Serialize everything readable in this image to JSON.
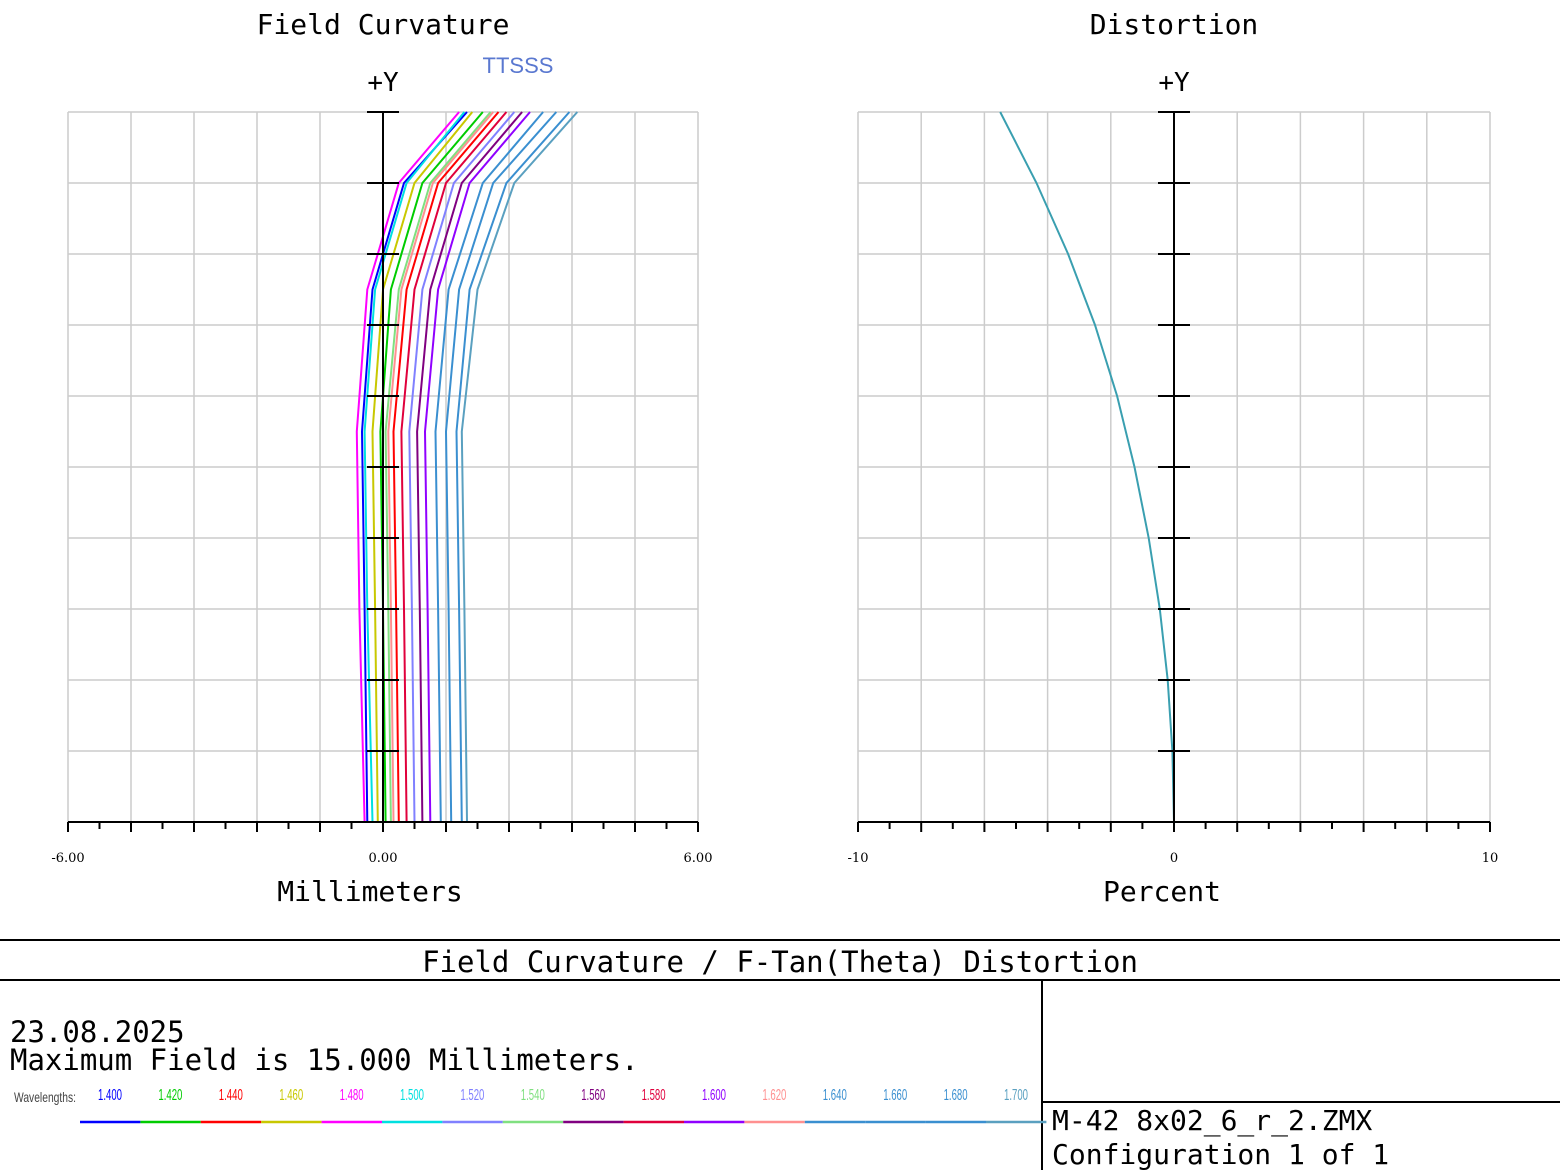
{
  "chart_data": [
    {
      "type": "line",
      "title": "Field Curvature",
      "xlabel": "Millimeters",
      "ylabel": "+Y",
      "xlim": [
        -6,
        6
      ],
      "ylim": [
        0,
        1
      ],
      "x_tick_labels": [
        "-6.00",
        "0.00",
        "6.00"
      ],
      "legend_marks": "TTSSS",
      "grid": true,
      "series": [
        {
          "color": "#0000ff",
          "values": [
            {
              "x": -0.3,
              "y": 0
            },
            {
              "x": -0.35,
              "y": 0.3
            },
            {
              "x": -0.4,
              "y": 0.55
            },
            {
              "x": -0.2,
              "y": 0.75
            },
            {
              "x": 0.4,
              "y": 0.9
            },
            {
              "x": 1.6,
              "y": 1
            }
          ]
        },
        {
          "color": "#00cc00",
          "values": [
            {
              "x": 0.05,
              "y": 0
            },
            {
              "x": 0.0,
              "y": 0.3
            },
            {
              "x": -0.05,
              "y": 0.55
            },
            {
              "x": 0.15,
              "y": 0.75
            },
            {
              "x": 0.75,
              "y": 0.9
            },
            {
              "x": 1.9,
              "y": 1
            }
          ]
        },
        {
          "color": "#ff0000",
          "values": [
            {
              "x": 0.3,
              "y": 0
            },
            {
              "x": 0.25,
              "y": 0.3
            },
            {
              "x": 0.2,
              "y": 0.55
            },
            {
              "x": 0.45,
              "y": 0.75
            },
            {
              "x": 1.05,
              "y": 0.9
            },
            {
              "x": 2.2,
              "y": 1
            }
          ]
        },
        {
          "color": "#c8c800",
          "values": [
            {
              "x": -0.1,
              "y": 0
            },
            {
              "x": -0.15,
              "y": 0.3
            },
            {
              "x": -0.2,
              "y": 0.55
            },
            {
              "x": 0.0,
              "y": 0.75
            },
            {
              "x": 0.6,
              "y": 0.9
            },
            {
              "x": 1.7,
              "y": 1
            }
          ]
        },
        {
          "color": "#ff00ff",
          "values": [
            {
              "x": -0.35,
              "y": 0
            },
            {
              "x": -0.45,
              "y": 0.3
            },
            {
              "x": -0.5,
              "y": 0.55
            },
            {
              "x": -0.3,
              "y": 0.75
            },
            {
              "x": 0.3,
              "y": 0.9
            },
            {
              "x": 1.45,
              "y": 1
            }
          ]
        },
        {
          "color": "#00e0e0",
          "values": [
            {
              "x": -0.2,
              "y": 0
            },
            {
              "x": -0.3,
              "y": 0.3
            },
            {
              "x": -0.35,
              "y": 0.55
            },
            {
              "x": -0.15,
              "y": 0.75
            },
            {
              "x": 0.45,
              "y": 0.9
            },
            {
              "x": 1.55,
              "y": 1
            }
          ]
        },
        {
          "color": "#8080ff",
          "values": [
            {
              "x": 0.6,
              "y": 0
            },
            {
              "x": 0.55,
              "y": 0.3
            },
            {
              "x": 0.5,
              "y": 0.55
            },
            {
              "x": 0.75,
              "y": 0.75
            },
            {
              "x": 1.35,
              "y": 0.9
            },
            {
              "x": 2.5,
              "y": 1
            }
          ]
        },
        {
          "color": "#80e080",
          "values": [
            {
              "x": 0.15,
              "y": 0
            },
            {
              "x": 0.1,
              "y": 0.3
            },
            {
              "x": 0.05,
              "y": 0.55
            },
            {
              "x": 0.3,
              "y": 0.75
            },
            {
              "x": 0.9,
              "y": 0.9
            },
            {
              "x": 2.05,
              "y": 1
            }
          ]
        },
        {
          "color": "#800080",
          "values": [
            {
              "x": 0.75,
              "y": 0
            },
            {
              "x": 0.7,
              "y": 0.3
            },
            {
              "x": 0.65,
              "y": 0.55
            },
            {
              "x": 0.9,
              "y": 0.75
            },
            {
              "x": 1.5,
              "y": 0.9
            },
            {
              "x": 2.65,
              "y": 1
            }
          ]
        },
        {
          "color": "#e0003c",
          "values": [
            {
              "x": 0.45,
              "y": 0
            },
            {
              "x": 0.4,
              "y": 0.3
            },
            {
              "x": 0.35,
              "y": 0.55
            },
            {
              "x": 0.6,
              "y": 0.75
            },
            {
              "x": 1.2,
              "y": 0.9
            },
            {
              "x": 2.35,
              "y": 1
            }
          ]
        },
        {
          "color": "#9000ff",
          "values": [
            {
              "x": 0.9,
              "y": 0
            },
            {
              "x": 0.85,
              "y": 0.3
            },
            {
              "x": 0.8,
              "y": 0.55
            },
            {
              "x": 1.05,
              "y": 0.75
            },
            {
              "x": 1.65,
              "y": 0.9
            },
            {
              "x": 2.8,
              "y": 1
            }
          ]
        },
        {
          "color": "#ff9090",
          "values": [
            {
              "x": 0.2,
              "y": 0
            },
            {
              "x": 0.15,
              "y": 0.3
            },
            {
              "x": 0.1,
              "y": 0.55
            },
            {
              "x": 0.35,
              "y": 0.75
            },
            {
              "x": 0.95,
              "y": 0.9
            },
            {
              "x": 2.1,
              "y": 1
            }
          ]
        },
        {
          "color": "#3a8fd0",
          "values": [
            {
              "x": 1.1,
              "y": 0
            },
            {
              "x": 1.05,
              "y": 0.3
            },
            {
              "x": 1.0,
              "y": 0.55
            },
            {
              "x": 1.25,
              "y": 0.75
            },
            {
              "x": 1.9,
              "y": 0.9
            },
            {
              "x": 3.05,
              "y": 1
            }
          ]
        },
        {
          "color": "#3a8fd0",
          "values": [
            {
              "x": 1.3,
              "y": 0
            },
            {
              "x": 1.25,
              "y": 0.3
            },
            {
              "x": 1.2,
              "y": 0.55
            },
            {
              "x": 1.45,
              "y": 0.75
            },
            {
              "x": 2.1,
              "y": 0.9
            },
            {
              "x": 3.3,
              "y": 1
            }
          ]
        },
        {
          "color": "#3a8fd0",
          "values": [
            {
              "x": 1.5,
              "y": 0
            },
            {
              "x": 1.45,
              "y": 0.3
            },
            {
              "x": 1.4,
              "y": 0.55
            },
            {
              "x": 1.65,
              "y": 0.75
            },
            {
              "x": 2.35,
              "y": 0.9
            },
            {
              "x": 3.55,
              "y": 1
            }
          ]
        },
        {
          "color": "#5aa0c0",
          "values": [
            {
              "x": 1.6,
              "y": 0
            },
            {
              "x": 1.55,
              "y": 0.3
            },
            {
              "x": 1.5,
              "y": 0.55
            },
            {
              "x": 1.8,
              "y": 0.75
            },
            {
              "x": 2.5,
              "y": 0.9
            },
            {
              "x": 3.7,
              "y": 1
            }
          ]
        }
      ]
    },
    {
      "type": "line",
      "title": "Distortion",
      "xlabel": "Percent",
      "ylabel": "+Y",
      "xlim": [
        -10,
        10
      ],
      "ylim": [
        0,
        1
      ],
      "x_tick_labels": [
        "-10",
        "0",
        "10"
      ],
      "grid": true,
      "series": [
        {
          "color": "#3a9fb0",
          "values": [
            {
              "x": 0,
              "y": 0
            },
            {
              "x": -0.05,
              "y": 0.1
            },
            {
              "x": -0.2,
              "y": 0.2
            },
            {
              "x": -0.45,
              "y": 0.3
            },
            {
              "x": -0.8,
              "y": 0.4
            },
            {
              "x": -1.25,
              "y": 0.5
            },
            {
              "x": -1.8,
              "y": 0.6
            },
            {
              "x": -2.5,
              "y": 0.7
            },
            {
              "x": -3.35,
              "y": 0.8
            },
            {
              "x": -4.35,
              "y": 0.9
            },
            {
              "x": -5.5,
              "y": 1
            }
          ]
        }
      ]
    }
  ],
  "footer": {
    "title": "Field Curvature / F-Tan(Theta) Distortion",
    "date": "23.08.2025",
    "max_field": "Maximum Field is 15.000 Millimeters.",
    "wavelengths_label": "Wavelengths:",
    "wavelengths": [
      {
        "label": "1.400",
        "color": "#0000ff"
      },
      {
        "label": "1.420",
        "color": "#00cc00"
      },
      {
        "label": "1.440",
        "color": "#ff0000"
      },
      {
        "label": "1.460",
        "color": "#c8c800"
      },
      {
        "label": "1.480",
        "color": "#ff00ff"
      },
      {
        "label": "1.500",
        "color": "#00e0e0"
      },
      {
        "label": "1.520",
        "color": "#8080ff"
      },
      {
        "label": "1.540",
        "color": "#80e080"
      },
      {
        "label": "1.560",
        "color": "#800080"
      },
      {
        "label": "1.580",
        "color": "#e0003c"
      },
      {
        "label": "1.600",
        "color": "#9000ff"
      },
      {
        "label": "1.620",
        "color": "#ff9090"
      },
      {
        "label": "1.640",
        "color": "#3a8fd0"
      },
      {
        "label": "1.660",
        "color": "#3a8fd0"
      },
      {
        "label": "1.680",
        "color": "#3a8fd0"
      },
      {
        "label": "1.700",
        "color": "#5aa0c0"
      }
    ],
    "file": "M-42 8x02_6_r_2.ZMX",
    "configuration": "Configuration 1 of 1"
  }
}
